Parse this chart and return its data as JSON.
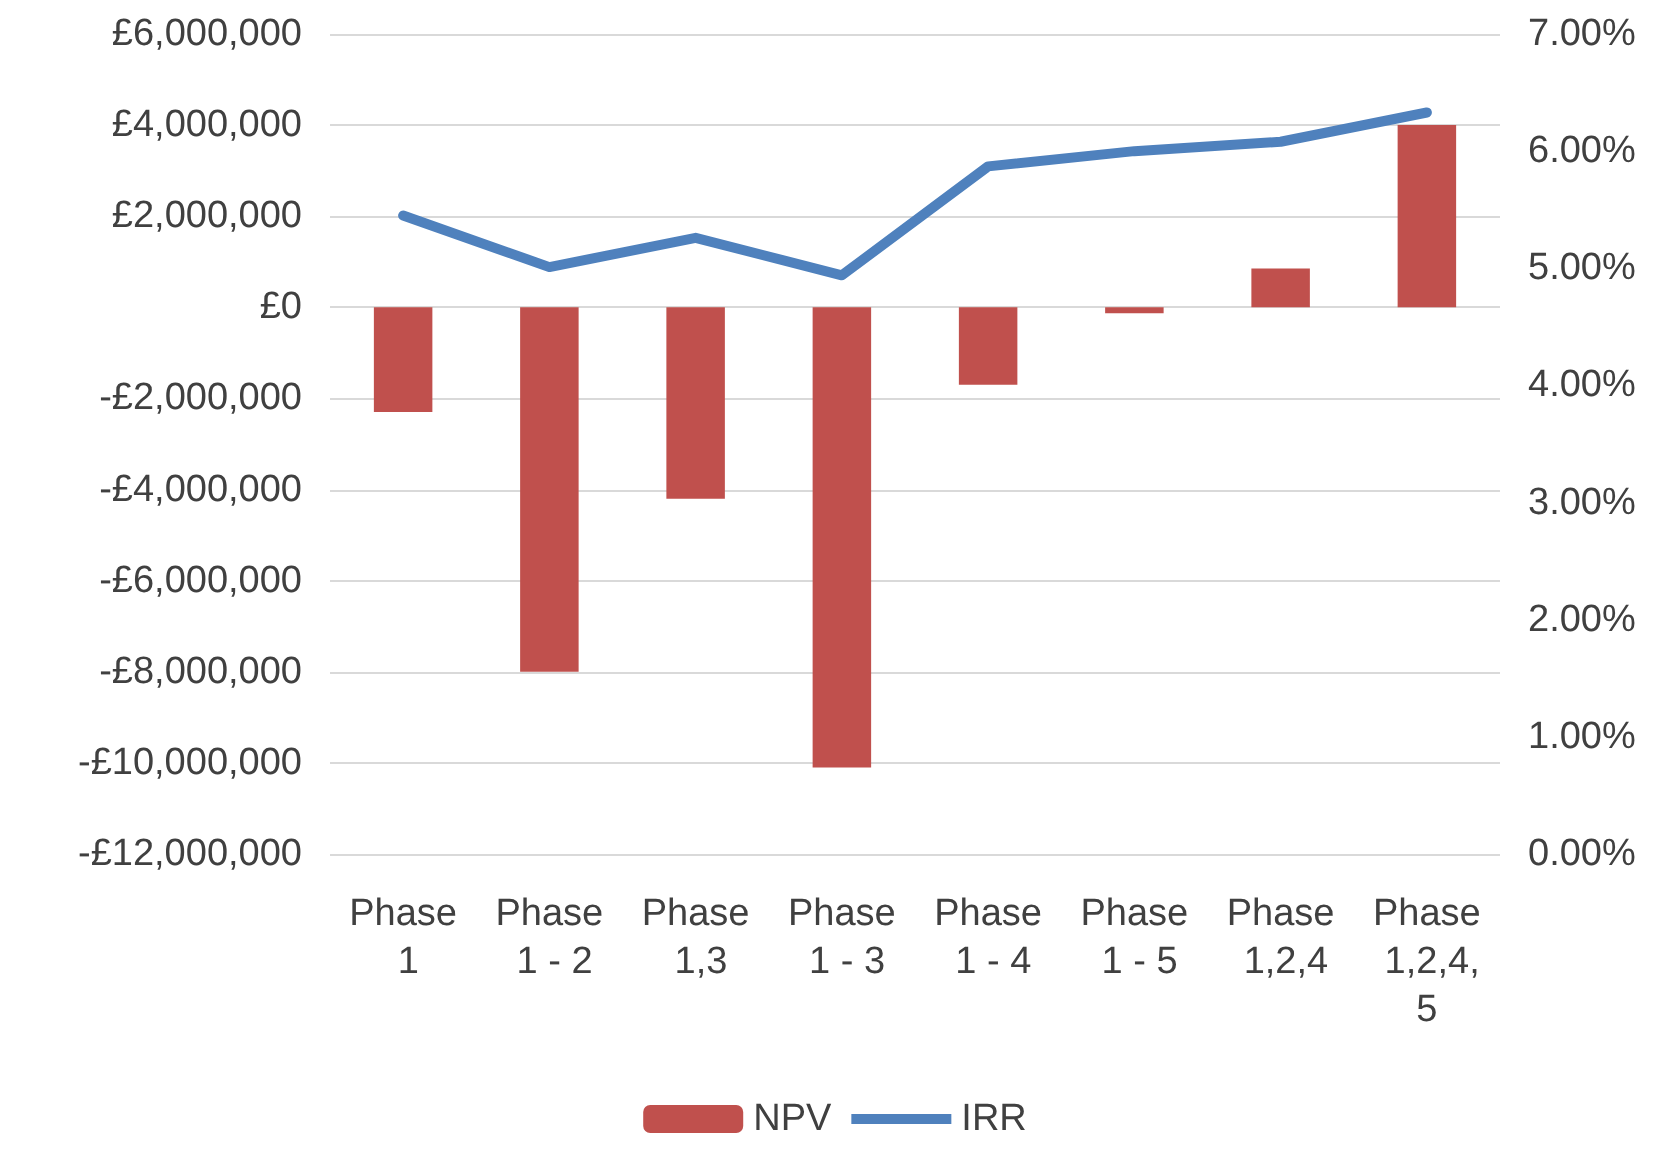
{
  "chart_data": {
    "type": "bar",
    "categories": [
      "Phase 1",
      "Phase 1 - 2",
      "Phase 1,3",
      "Phase 1 - 3",
      "Phase 1 - 4",
      "Phase 1 - 5",
      "Phase 1,2,4",
      "Phase 1,2,4,5"
    ],
    "series": [
      {
        "name": "NPV",
        "color": "#c0504d",
        "values": [
          -2300000,
          -8000000,
          -4200000,
          -10100000,
          -1700000,
          -130000,
          850000,
          4000000
        ]
      },
      {
        "name": "IRR",
        "type": "line",
        "axis": "y2",
        "color": "#4f81bd",
        "values": [
          5.45,
          5.01,
          5.26,
          4.94,
          5.87,
          6.0,
          6.08,
          6.33
        ]
      }
    ],
    "ylim": [
      -12000000,
      6000000
    ],
    "yticks": [
      {
        "value": -12000000,
        "label": "-£12,000,000"
      },
      {
        "value": -10000000,
        "label": "-£10,000,000"
      },
      {
        "value": -8000000,
        "label": "-£8,000,000"
      },
      {
        "value": -6000000,
        "label": "-£6,000,000"
      },
      {
        "value": -4000000,
        "label": "-£4,000,000"
      },
      {
        "value": -2000000,
        "label": "-£2,000,000"
      },
      {
        "value": 0,
        "label": "£0"
      },
      {
        "value": 2000000,
        "label": "£2,000,000"
      },
      {
        "value": 4000000,
        "label": "£4,000,000"
      },
      {
        "value": 6000000,
        "label": "£6,000,000"
      }
    ],
    "y2lim": [
      0,
      7
    ],
    "y2ticks": [
      {
        "value": 0,
        "label": "0.00%"
      },
      {
        "value": 1,
        "label": "1.00%"
      },
      {
        "value": 2,
        "label": "2.00%"
      },
      {
        "value": 3,
        "label": "3.00%"
      },
      {
        "value": 4,
        "label": "4.00%"
      },
      {
        "value": 5,
        "label": "5.00%"
      },
      {
        "value": 6,
        "label": "6.00%"
      },
      {
        "value": 7,
        "label": "7.00%"
      }
    ],
    "grid": "y",
    "legend": "bottom",
    "marker": "none"
  }
}
